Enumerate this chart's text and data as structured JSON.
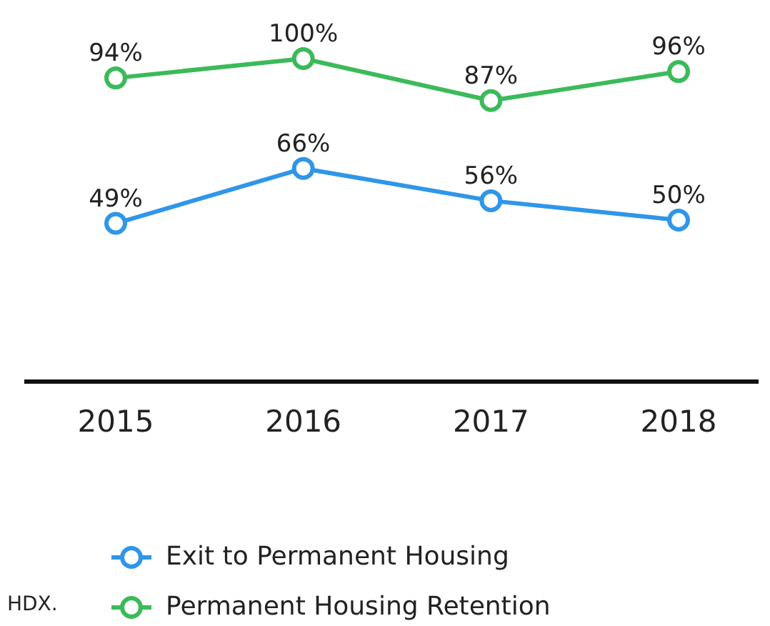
{
  "chart_data": {
    "type": "line",
    "categories": [
      "2015",
      "2016",
      "2017",
      "2018"
    ],
    "series": [
      {
        "name": "Exit to Permanent Housing",
        "color": "#2f96e8",
        "values": [
          49,
          66,
          56,
          50
        ],
        "value_labels": [
          "49%",
          "66%",
          "56%",
          "50%"
        ]
      },
      {
        "name": "Permanent Housing Retention",
        "color": "#3cba5a",
        "values": [
          94,
          100,
          87,
          96
        ],
        "value_labels": [
          "94%",
          "100%",
          "87%",
          "96%"
        ]
      }
    ],
    "marker": "circle",
    "line_style": "solid",
    "legend": "bottom",
    "annotations": [
      "HDX."
    ]
  }
}
